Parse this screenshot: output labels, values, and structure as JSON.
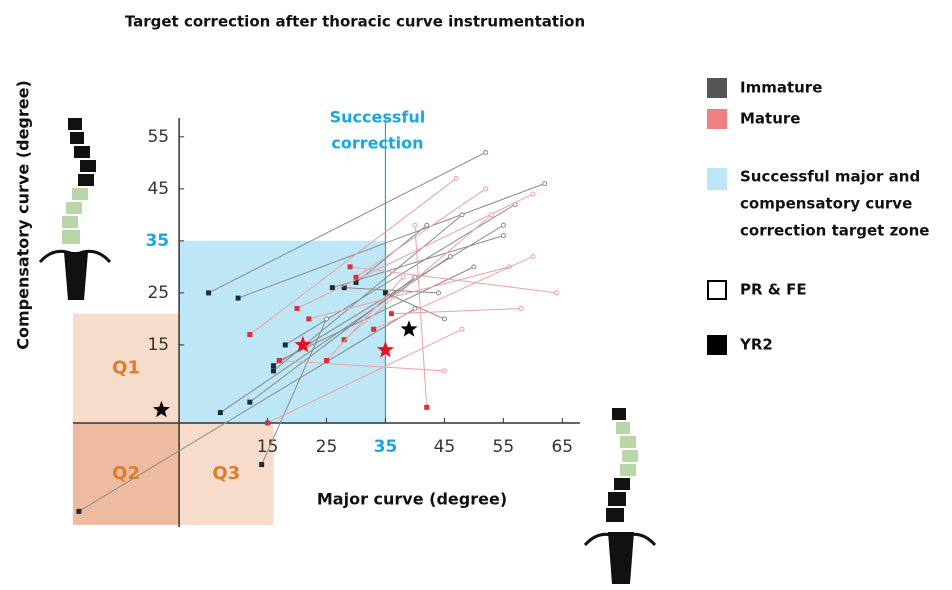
{
  "chart_data": {
    "type": "trajectory",
    "title": "Target correction after thoracic curve instrumentation",
    "x_label": "Major curve (degree)",
    "y_label": "Compensatory curve (degree)",
    "xlim": [
      -18,
      68
    ],
    "ylim": [
      -20,
      59
    ],
    "xticks": [
      15,
      25,
      35,
      45,
      55,
      65
    ],
    "yticks": [
      15,
      25,
      35,
      45,
      55
    ],
    "target_zone": {
      "xlim": [
        0,
        35
      ],
      "ylim": [
        0,
        35
      ],
      "color": "#bde6f6",
      "highlight_color": "#1aa7e0",
      "label_lines": [
        "Successful major and",
        "compensatory curve",
        "correction target zone"
      ]
    },
    "threshold": {
      "x": 35,
      "label_lines": [
        "Successful",
        "correction"
      ]
    },
    "quadrants": [
      {
        "label": "Q1",
        "xlim": [
          -18,
          0
        ],
        "ylim": [
          0,
          21
        ],
        "color": "#f8dccb"
      },
      {
        "label": "Q2",
        "xlim": [
          -18,
          0
        ],
        "ylim": [
          -19.6,
          0
        ],
        "color": "#eebba0"
      },
      {
        "label": "Q3",
        "xlim": [
          0,
          16
        ],
        "ylim": [
          -19.6,
          0
        ],
        "color": "#f8dccb"
      }
    ],
    "markers": {
      "start": "PR & FE",
      "end": "YR2"
    },
    "series": [
      {
        "name": "Immature",
        "color": "#555555",
        "line_color": "#8a8a8a",
        "end_color": "#1f2b33",
        "pr_fe_x": [
          52,
          62,
          57,
          55,
          48,
          50,
          46,
          40,
          55,
          44,
          42,
          45,
          25,
          40
        ],
        "pr_fe_y": [
          52,
          46,
          42,
          38,
          40,
          30,
          32,
          28,
          36,
          25,
          38,
          20,
          20,
          22
        ],
        "yr2_x": [
          5,
          10,
          18,
          16,
          16,
          17,
          7,
          12,
          26,
          28,
          30,
          35,
          14,
          -17
        ],
        "yr2_y": [
          25,
          24,
          15,
          11,
          10,
          12,
          2,
          4,
          26,
          26,
          27,
          25,
          -8,
          -17
        ]
      },
      {
        "name": "Mature",
        "color": "#f08080",
        "line_color": "#f0a0a0",
        "end_color": "#d9303a",
        "pr_fe_x": [
          47,
          60,
          56,
          52,
          64,
          58,
          40,
          45,
          53,
          60,
          38,
          48
        ],
        "pr_fe_y": [
          47,
          44,
          30,
          45,
          25,
          22,
          38,
          10,
          40,
          32,
          28,
          18
        ],
        "yr2_x": [
          12,
          20,
          22,
          30,
          29,
          36,
          42,
          17,
          28,
          33,
          25,
          15
        ],
        "yr2_y": [
          17,
          22,
          20,
          28,
          30,
          21,
          3,
          12,
          16,
          18,
          12,
          0
        ]
      }
    ],
    "means": [
      {
        "color": "#000000",
        "x": [
          -3,
          39
        ],
        "values": [
          2.5,
          18
        ]
      },
      {
        "color": "#e8101a",
        "x": [
          21,
          35
        ],
        "values": [
          15,
          14
        ]
      }
    ]
  }
}
